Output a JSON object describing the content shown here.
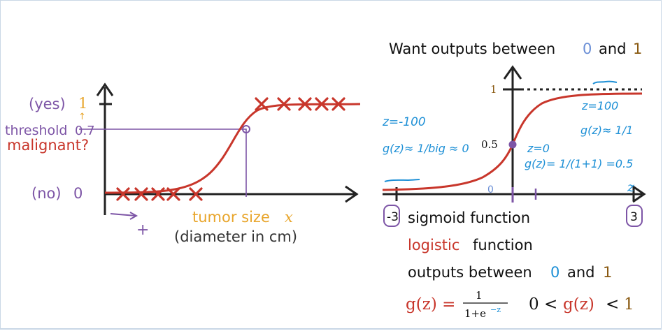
{
  "left_plot": {
    "y_yes_prefix": "(yes)",
    "y_yes_value": "1",
    "y_no_prefix": "(no)",
    "y_no_value": "0",
    "threshold_label": "threshold",
    "threshold_value": "0.7",
    "malignant_label": "malignant?",
    "x_label_main": "tumor size",
    "x_label_var": "x",
    "x_label_sub": "(diameter in cm)",
    "plus_mark": "+",
    "up_arrow": "↑"
  },
  "right_plot": {
    "title_prefix": "Want outputs between",
    "title_zero": "0",
    "title_and": "and",
    "title_one": "1",
    "y_one": "1",
    "y_half": "0.5",
    "x_zero": "0",
    "axis_var": "z",
    "neg_tick": "-3",
    "pos_tick": "3",
    "note_left_1": "z=-100",
    "note_left_2": "g(z)≈ 1/big ≈ 0",
    "note_center_1": "z=0",
    "note_center_2": "g(z)= 1/(1+1) =0.5",
    "note_right_1": "z=100",
    "note_right_2": "g(z)≈ 1/1"
  },
  "text_block": {
    "line1": "sigmoid function",
    "line2_colored": "logistic",
    "line2_rest": "function",
    "line3_prefix": "outputs between",
    "line3_zero": "0",
    "line3_and": "and",
    "line3_one": "1",
    "formula_lhs": "g(z) =",
    "formula_num": "1",
    "formula_den": "1+e",
    "formula_exp": "−z",
    "range_text_left": "0 <",
    "range_g": "g(z)",
    "range_text_right": "<",
    "range_one": "1"
  },
  "colors": {
    "red": "#c8362b",
    "purple": "#7d55a6",
    "gold": "#e8a52b",
    "brown": "#8a5a12",
    "blue": "#1e90d6",
    "dark": "#222222"
  }
}
